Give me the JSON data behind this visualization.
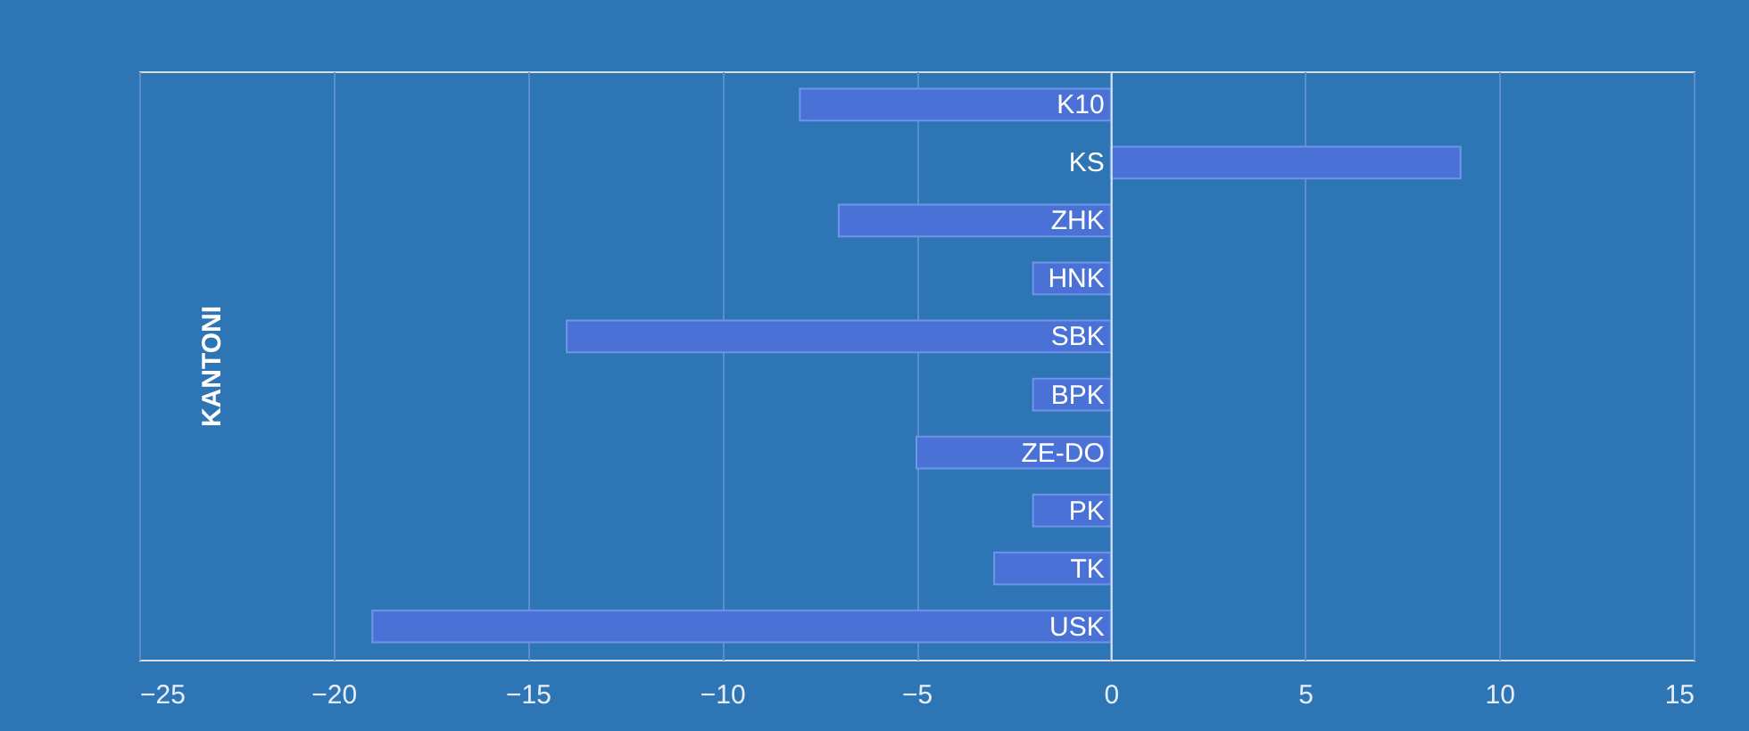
{
  "chart_data": {
    "type": "bar",
    "orientation": "horizontal",
    "ylabel": "KANTONI",
    "categories": [
      "K10",
      "KS",
      "ZHK",
      "HNK",
      "SBK",
      "BPK",
      "ZE-DO",
      "PK",
      "TK",
      "USK"
    ],
    "values": [
      -8,
      9,
      -7,
      -2,
      -14,
      -2,
      -5,
      -2,
      -3,
      -19
    ],
    "color": "#4a72d6",
    "xlim": [
      -25,
      15
    ],
    "xticks": [
      -25,
      -20,
      -15,
      -10,
      -5,
      0,
      5,
      10,
      15
    ],
    "grid": "x"
  }
}
